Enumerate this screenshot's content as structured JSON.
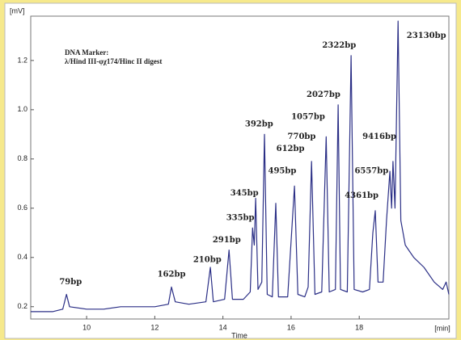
{
  "chart_data": {
    "type": "line",
    "y_unit": "[mV]",
    "x_unit": "[min]",
    "x_label": "Time",
    "notes": [
      "DNA Marker:",
      "λ/Hind III-φχ174/Hinc II digest"
    ],
    "xlim": [
      8.36,
      20.63
    ],
    "xticks": [
      10,
      12,
      14,
      16,
      18
    ],
    "ylim": [
      0.15,
      1.38
    ],
    "yticks": [
      0.2,
      0.4,
      0.6,
      0.8,
      {
        "value": 1,
        "label": "1.0"
      },
      1.2
    ],
    "series": [
      {
        "color": "#2b2f86",
        "x": [
          8.36,
          9.0,
          9.3,
          9.41,
          9.5,
          10.0,
          10.5,
          11.0,
          11.5,
          12.0,
          12.4,
          12.49,
          12.6,
          13.0,
          13.5,
          13.63,
          13.72,
          14.05,
          14.18,
          14.28,
          14.6,
          14.8,
          14.87,
          14.92,
          14.96,
          15.03,
          15.14,
          15.22,
          15.3,
          15.45,
          15.55,
          15.63,
          15.9,
          16.1,
          16.2,
          16.4,
          16.5,
          16.6,
          16.7,
          16.9,
          17.03,
          17.12,
          17.3,
          17.38,
          17.45,
          17.65,
          17.76,
          17.85,
          18.1,
          18.3,
          18.4,
          18.47,
          18.55,
          18.7,
          18.8,
          18.9,
          18.95,
          18.99,
          19.05,
          19.14,
          19.22,
          19.35,
          19.6,
          19.9,
          20.2,
          20.45,
          20.55,
          20.63
        ],
        "values": [
          0.18,
          0.18,
          0.19,
          0.25,
          0.2,
          0.19,
          0.19,
          0.2,
          0.2,
          0.2,
          0.21,
          0.28,
          0.22,
          0.21,
          0.22,
          0.36,
          0.22,
          0.23,
          0.43,
          0.23,
          0.23,
          0.26,
          0.52,
          0.45,
          0.64,
          0.27,
          0.3,
          0.9,
          0.25,
          0.24,
          0.62,
          0.24,
          0.24,
          0.69,
          0.25,
          0.24,
          0.28,
          0.79,
          0.25,
          0.26,
          0.89,
          0.26,
          0.27,
          1.02,
          0.27,
          0.26,
          1.22,
          0.27,
          0.26,
          0.27,
          0.5,
          0.59,
          0.3,
          0.3,
          0.55,
          0.75,
          0.6,
          0.79,
          0.6,
          1.36,
          0.55,
          0.45,
          0.4,
          0.36,
          0.3,
          0.27,
          0.3,
          0.25
        ]
      }
    ],
    "annotations": [
      {
        "text": "79bp",
        "x": 9.53,
        "y": 0.3
      },
      {
        "text": "162bp",
        "x": 12.49,
        "y": 0.33
      },
      {
        "text": "210bp",
        "x": 13.54,
        "y": 0.39
      },
      {
        "text": "291bp",
        "x": 14.11,
        "y": 0.47
      },
      {
        "text": "335bp",
        "x": 14.51,
        "y": 0.56
      },
      {
        "text": "345bp",
        "x": 14.63,
        "y": 0.66
      },
      {
        "text": "392bp",
        "x": 15.06,
        "y": 0.94
      },
      {
        "text": "495bp",
        "x": 15.74,
        "y": 0.75
      },
      {
        "text": "612bp",
        "x": 15.98,
        "y": 0.84
      },
      {
        "text": "770bp",
        "x": 16.31,
        "y": 0.89
      },
      {
        "text": "1057bp",
        "x": 16.5,
        "y": 0.97
      },
      {
        "text": "2027bp",
        "x": 16.95,
        "y": 1.06
      },
      {
        "text": "2322bp",
        "x": 17.41,
        "y": 1.26
      },
      {
        "text": "4361bp",
        "x": 18.07,
        "y": 0.65
      },
      {
        "text": "6557bp",
        "x": 18.36,
        "y": 0.75
      },
      {
        "text": "9416bp",
        "x": 18.59,
        "y": 0.89
      },
      {
        "text": "23130bp",
        "x": 19.97,
        "y": 1.3
      }
    ]
  }
}
